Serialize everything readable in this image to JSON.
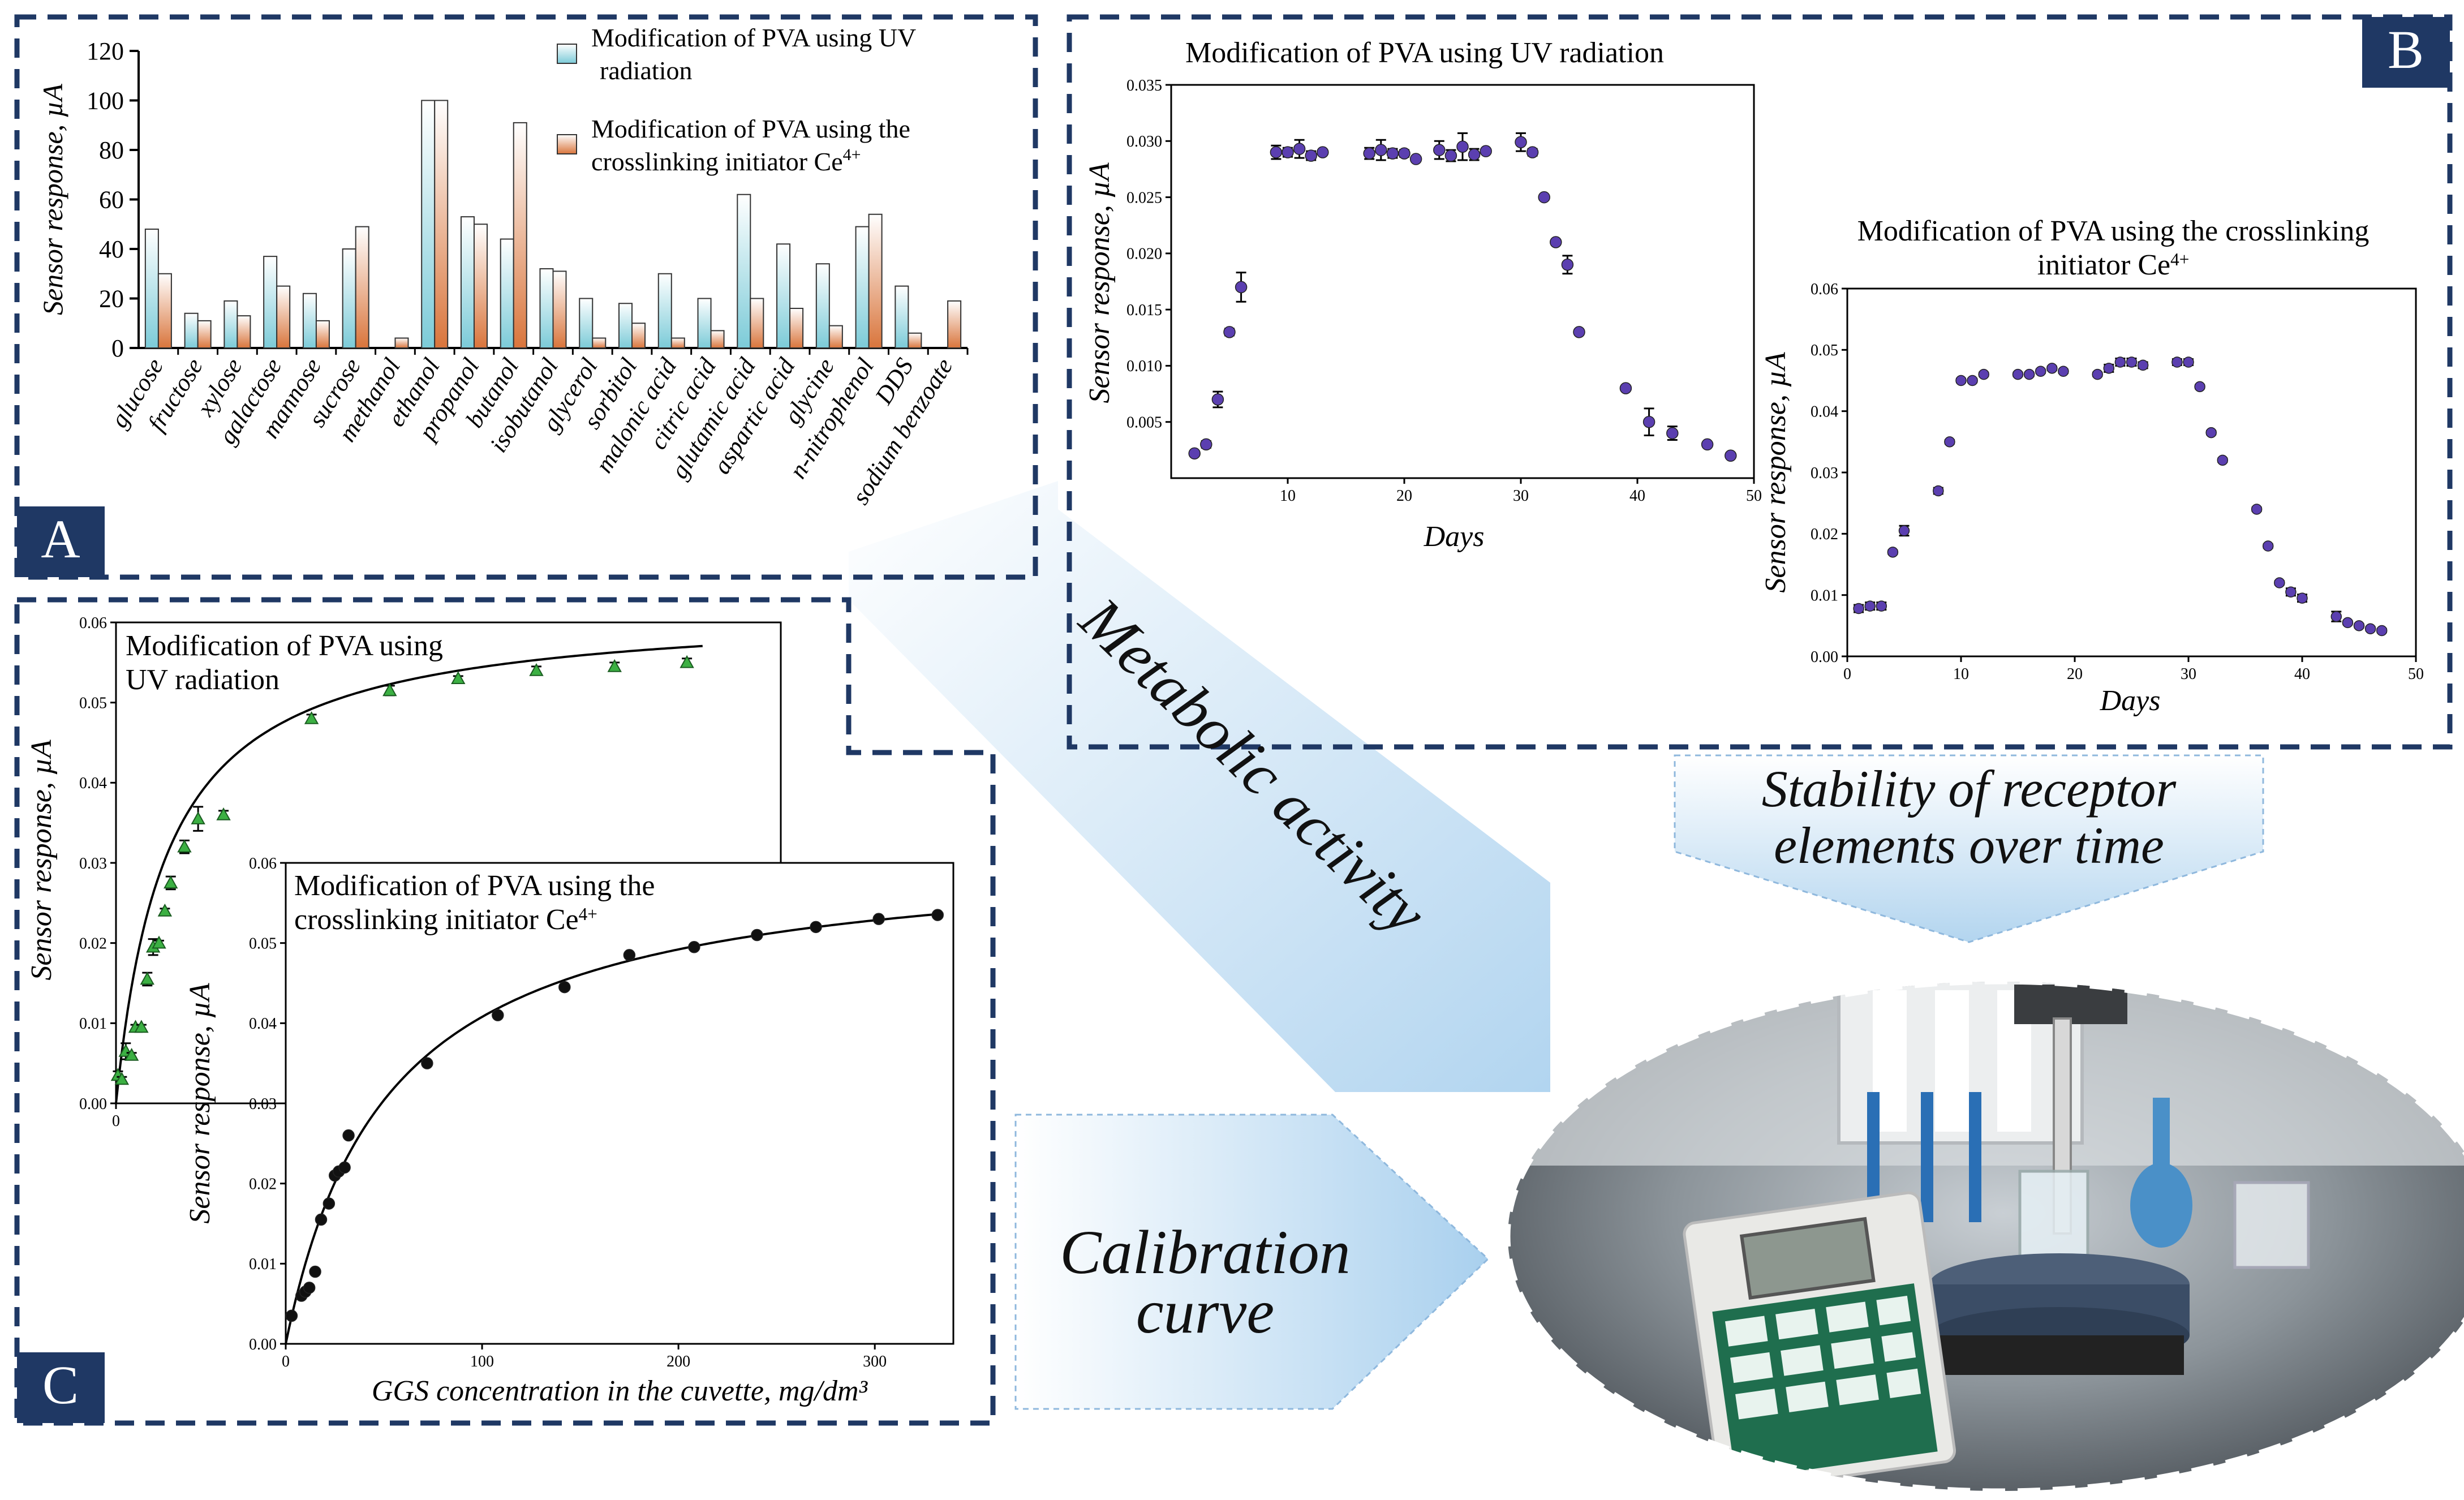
{
  "panels": {
    "a_label": "A",
    "b_label": "B",
    "c_label": "C"
  },
  "arrows": {
    "metabolic": "Metabolic activity",
    "stability_line1": "Stability of receptor",
    "stability_line2": "elements over time",
    "calibration_line1": "Calibration",
    "calibration_line2": "curve"
  },
  "colors": {
    "uv_bar": "#9fd6e0",
    "ce_bar": "#e8a37a",
    "panel_b_marker": "#5b3fb0",
    "panel_c_uv_marker": "#3cb043",
    "panel_c_ce_marker": "#111111",
    "panel_label_bg": "#1f3864",
    "arrow_fill": "#bcdcf0",
    "dashed_border": "#1f3864"
  },
  "chart_data": [
    {
      "id": "A",
      "type": "bar",
      "ylabel": "Sensor response, µA",
      "ylim": [
        0,
        120
      ],
      "yticks": [
        0,
        20,
        40,
        60,
        80,
        100,
        120
      ],
      "categories": [
        "glucose",
        "fructose",
        "xylose",
        "galactose",
        "mannose",
        "sucrose",
        "methanol",
        "ethanol",
        "propanol",
        "butanol",
        "isobutanol",
        "glycerol",
        "sorbitol",
        "malonic acid",
        "citric acid",
        "glutamic acid",
        "aspartic acid",
        "glycine",
        "n-nitrophenol",
        "DDS",
        "sodium benzoate"
      ],
      "series": [
        {
          "name": "Modification of PVA using UV radiation",
          "values": [
            48,
            14,
            19,
            37,
            22,
            40,
            0,
            100,
            53,
            44,
            32,
            20,
            18,
            30,
            20,
            62,
            42,
            34,
            49,
            25,
            0
          ]
        },
        {
          "name": "Modification of PVA using the crosslinking initiator Ce4+",
          "values": [
            30,
            11,
            13,
            25,
            11,
            49,
            4,
            100,
            50,
            91,
            31,
            4,
            10,
            4,
            7,
            20,
            16,
            9,
            54,
            6,
            19
          ]
        }
      ],
      "legend": "top-right"
    },
    {
      "id": "B1",
      "type": "scatter",
      "title": "Modification of PVA using UV radiation",
      "xlabel": "Days",
      "ylabel": "Sensor response, µA",
      "xlim": [
        0,
        50
      ],
      "ylim": [
        0,
        0.035
      ],
      "xticks": [
        10,
        20,
        30,
        40,
        50
      ],
      "yticks": [
        "0.005",
        "0.010",
        "0.015",
        "0.020",
        "0.025",
        "0.030",
        "0.035"
      ],
      "x": [
        2,
        3,
        4,
        5,
        6,
        9,
        10,
        11,
        12,
        13,
        17,
        18,
        19,
        20,
        21,
        23,
        24,
        25,
        26,
        27,
        30,
        31,
        32,
        33,
        34,
        35,
        39,
        41,
        43,
        46,
        48
      ],
      "y": [
        0.0022,
        0.003,
        0.007,
        0.013,
        0.017,
        0.029,
        0.029,
        0.0293,
        0.0287,
        0.029,
        0.0289,
        0.0292,
        0.0289,
        0.0289,
        0.0284,
        0.0292,
        0.0287,
        0.0295,
        0.0288,
        0.0291,
        0.0299,
        0.029,
        0.025,
        0.021,
        0.019,
        0.013,
        0.008,
        0.005,
        0.004,
        0.003,
        0.002
      ],
      "err": [
        0.0002,
        0.0003,
        0.0007,
        0.0003,
        0.0013,
        0.0006,
        0.0004,
        0.0008,
        0.0004,
        0.0002,
        0.0005,
        0.0009,
        0.0004,
        0.0003,
        0.0002,
        0.0008,
        0.0005,
        0.0012,
        0.0005,
        0.0002,
        0.0008,
        0.0003,
        0.0002,
        0.0002,
        0.0008,
        0.0002,
        0.0002,
        0.0012,
        0.0006,
        0.0002,
        0.0002
      ]
    },
    {
      "id": "B2",
      "type": "scatter",
      "title": "Modification of PVA using the crosslinking initiator Ce4+",
      "xlabel": "Days",
      "ylabel": "Sensor response, µA",
      "xlim": [
        0,
        50
      ],
      "ylim": [
        0,
        0.06
      ],
      "xticks": [
        0,
        10,
        20,
        30,
        40,
        50
      ],
      "yticks": [
        "0.00",
        "0.01",
        "0.02",
        "0.03",
        "0.04",
        "0.05",
        "0.06"
      ],
      "x": [
        1,
        2,
        3,
        4,
        5,
        8,
        9,
        10,
        11,
        12,
        15,
        16,
        17,
        18,
        19,
        22,
        23,
        24,
        25,
        26,
        29,
        30,
        31,
        32,
        33,
        36,
        37,
        38,
        39,
        40,
        43,
        44,
        45,
        46,
        47
      ],
      "y": [
        0.0078,
        0.0082,
        0.0082,
        0.017,
        0.0205,
        0.027,
        0.035,
        0.045,
        0.045,
        0.046,
        0.046,
        0.046,
        0.0465,
        0.047,
        0.0465,
        0.046,
        0.047,
        0.048,
        0.048,
        0.0475,
        0.048,
        0.048,
        0.044,
        0.0365,
        0.032,
        0.024,
        0.018,
        0.012,
        0.0105,
        0.0095,
        0.0065,
        0.0055,
        0.005,
        0.0045,
        0.0042
      ],
      "err": [
        0.0006,
        0.0006,
        0.0006,
        0.0003,
        0.0008,
        0.0005,
        0.0003,
        0.0003,
        0.0003,
        0.0003,
        0.0003,
        0.0003,
        0.0003,
        0.0003,
        0.0003,
        0.0003,
        0.0006,
        0.0006,
        0.0006,
        0.0005,
        0.0005,
        0.0005,
        0.0003,
        0.0003,
        0.0003,
        0.0003,
        0.0003,
        0.0003,
        0.0006,
        0.0006,
        0.0008,
        0.0003,
        0.0003,
        0.0003,
        0.0003
      ]
    },
    {
      "id": "C1",
      "type": "scatter",
      "title": "Modification of PVA using UV radiation",
      "ylabel": "Sensor response, µA",
      "xlim": [
        0,
        340
      ],
      "ylim": [
        0,
        0.06
      ],
      "xticks": [
        0
      ],
      "yticks": [
        "0.00",
        "0.01",
        "0.02",
        "0.03",
        "0.04",
        "0.05",
        "0.06"
      ],
      "x": [
        1,
        3,
        5,
        8,
        10,
        13,
        16,
        19,
        22,
        25,
        28,
        35,
        42,
        55,
        100,
        140,
        175,
        215,
        255,
        292
      ],
      "y": [
        0.0035,
        0.003,
        0.0065,
        0.006,
        0.0095,
        0.0095,
        0.0155,
        0.0195,
        0.02,
        0.024,
        0.0275,
        0.032,
        0.0355,
        0.036,
        0.048,
        0.0515,
        0.053,
        0.054,
        0.0545,
        0.055
      ],
      "err": [
        0.0005,
        0.0003,
        0.001,
        0.0003,
        0.0003,
        0.0003,
        0.0008,
        0.001,
        0.0003,
        0.0003,
        0.0008,
        0.0008,
        0.0015,
        0.0005,
        0.0005,
        0.0006,
        0.0003,
        0.0005,
        0.0005,
        0.0005
      ],
      "fit": {
        "vmax": 0.062,
        "km": 26
      }
    },
    {
      "id": "C2",
      "type": "scatter",
      "title": "Modification of PVA using the crosslinking initiator Ce4+",
      "xlabel": "GGS concentration in the cuvette, mg/dm³",
      "ylabel": "Sensor response, µA",
      "xlim": [
        0,
        340
      ],
      "ylim": [
        0,
        0.06
      ],
      "xticks": [
        0,
        100,
        200,
        300
      ],
      "yticks": [
        "0.00",
        "0.01",
        "0.02",
        "0.03",
        "0.04",
        "0.05",
        "0.06"
      ],
      "x": [
        3,
        8,
        10,
        12,
        15,
        18,
        22,
        25,
        27,
        30,
        32,
        72,
        108,
        142,
        175,
        208,
        240,
        270,
        302,
        332
      ],
      "y": [
        0.0035,
        0.006,
        0.0065,
        0.007,
        0.009,
        0.0155,
        0.0175,
        0.021,
        0.0215,
        0.022,
        0.026,
        0.035,
        0.041,
        0.0445,
        0.0485,
        0.0495,
        0.051,
        0.052,
        0.053,
        0.0535
      ],
      "fit": {
        "vmax": 0.062,
        "km": 52
      }
    }
  ]
}
